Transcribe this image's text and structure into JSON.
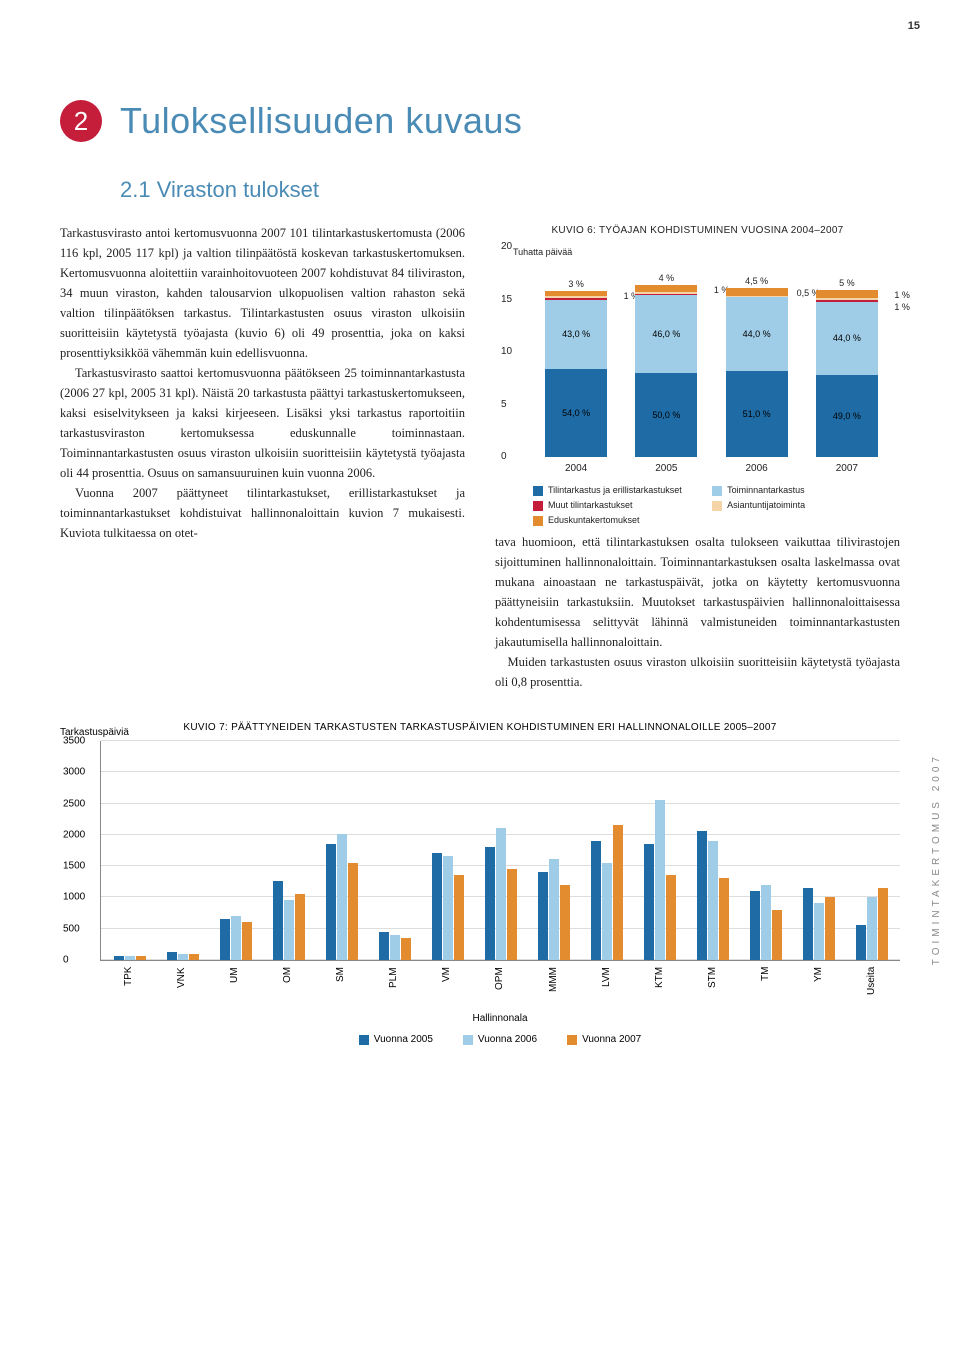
{
  "page_number": "15",
  "chapter": {
    "number": "2",
    "title": "Tuloksellisuuden kuvaus"
  },
  "section_title": "2.1 Viraston tulokset",
  "side_text": "TOIMINTAKERTOMUS 2007",
  "colors": {
    "accent_red": "#c41e3a",
    "accent_blue": "#4a8bb5",
    "bar_dark_blue": "#1f6ba5",
    "bar_light_blue": "#9fcce6",
    "bar_orange": "#e38b2f",
    "bar_pale": "#f5d5a8",
    "bar_red": "#c41e3a",
    "grid": "#dddddd"
  },
  "left_paras": [
    "Tarkastusvirasto antoi kertomusvuonna 2007 101 tilintarkastuskertomusta (2006 116 kpl, 2005 117 kpl) ja valtion tilinpäätöstä koskevan tarkastuskertomuksen. Kertomusvuonna aloitettiin varainhoitovuoteen 2007 kohdistuvat 84 tiliviraston, 34 muun viraston, kahden talousarvion ulkopuolisen valtion rahaston sekä valtion tilinpäätöksen tarkastus. Tilintarkastusten osuus viraston ulkoisiin suoritteisiin käytetystä työajasta (kuvio 6) oli 49 prosenttia, joka on kaksi prosenttiyksikköä vähemmän kuin edellisvuonna.",
    "Tarkastusvirasto saattoi kertomusvuonna päätökseen 25 toiminnantarkastusta (2006 27 kpl, 2005 31 kpl). Näistä 20 tarkastusta päättyi tarkastuskertomukseen, kaksi esiselvitykseen ja kaksi kirjeeseen. Lisäksi yksi tarkastus raportoitiin tarkastusviraston kertomuksessa eduskunnalle toiminnastaan. Toiminnantarkastusten osuus viraston ulkoisiin suoritteisiin käytetystä työajasta oli 44 prosenttia. Osuus on samansuuruinen kuin vuonna 2006.",
    "Vuonna 2007 päättyneet tilintarkastukset, erillistarkastukset ja toiminnantarkastukset kohdistuivat hallinnonaloittain kuvion 7 mukaisesti. Kuviota tulkitaessa on otet-"
  ],
  "right_para": "tava huomioon, että tilintarkastuksen osalta tulokseen vaikuttaa tilivirastojen sijoittuminen hallinnonaloittain. Toiminnantarkastuksen osalta laskelmassa ovat mukana ainoastaan ne tarkastuspäivät, jotka on käytetty kertomusvuonna päättyneisiin tarkastuksiin. Muutokset tarkastuspäivien hallinnonaloittaisessa kohdentumisessa selittyvät lähinnä valmistuneiden toiminnantarkastusten jakautumisella hallinnonaloittain.\n Muiden tarkastusten osuus viraston ulkoisiin suoritteisiin käytetystä työajasta oli 0,8 prosenttia.",
  "chart6": {
    "title": "KUVIO 6: TYÖAJAN KOHDISTUMINEN VUOSINA 2004–2007",
    "y_unit": "Tuhatta päivää",
    "ymax": 20,
    "yticks": [
      0,
      5,
      10,
      15,
      20
    ],
    "categories": [
      "2004",
      "2005",
      "2006",
      "2007"
    ],
    "segments_order": [
      "tilintarkastus",
      "toiminnantarkastus",
      "muut",
      "asiantuntija",
      "eduskunta"
    ],
    "seg_colors": {
      "tilintarkastus": "#1f6ba5",
      "toiminnantarkastus": "#9fcce6",
      "muut": "#c41e3a",
      "asiantuntija": "#f5d5a8",
      "eduskunta": "#e38b2f"
    },
    "top_labels": [
      "3 %",
      "4 %",
      "4,5 %",
      "5 %"
    ],
    "upper_small": [
      "1 %",
      "1 %",
      "0,5 %",
      "1 %"
    ],
    "extra_2007": "1 %",
    "mid_labels": [
      "43,0 %",
      "46,0 %",
      "44,0 %",
      "44,0 %"
    ],
    "bottom_labels": [
      "54,0 %",
      "50,0 %",
      "51,0 %",
      "49,0 %"
    ],
    "heights_pct_of_ymax": [
      {
        "tilintarkastus": 42,
        "toiminnantarkastus": 33,
        "muut": 0.8,
        "asiantuntija": 0.8,
        "eduskunta": 2.4
      },
      {
        "tilintarkastus": 40,
        "toiminnantarkastus": 37,
        "muut": 0.8,
        "asiantuntija": 0.8,
        "eduskunta": 3.2
      },
      {
        "tilintarkastus": 41,
        "toiminnantarkastus": 35,
        "muut": 0.4,
        "asiantuntija": 0.4,
        "eduskunta": 3.6
      },
      {
        "tilintarkastus": 39,
        "toiminnantarkastus": 35,
        "muut": 0.8,
        "asiantuntija": 0.8,
        "eduskunta": 4.0
      }
    ],
    "legend": [
      {
        "color": "#1f6ba5",
        "label": "Tilintarkastus ja erillistarkastukset"
      },
      {
        "color": "#9fcce6",
        "label": "Toiminnantarkastus"
      },
      {
        "color": "#c41e3a",
        "label": "Muut tilintarkastukset"
      },
      {
        "color": "#f5d5a8",
        "label": "Asiantuntijatoiminta"
      },
      {
        "color": "#e38b2f",
        "label": "Eduskuntakertomukset"
      }
    ]
  },
  "chart7": {
    "title": "KUVIO 7: PÄÄTTYNEIDEN TARKASTUSTEN TARKASTUSPÄIVIEN KOHDISTUMINEN ERI HALLINNONALOILLE 2005–2007",
    "y_unit": "Tarkastuspäiviä",
    "x_axis_title": "Hallinnonala",
    "ymax": 3500,
    "yticks": [
      0,
      500,
      1000,
      1500,
      2000,
      2500,
      3000,
      3500
    ],
    "categories": [
      "TPK",
      "VNK",
      "UM",
      "OM",
      "SM",
      "PLM",
      "VM",
      "OPM",
      "MMM",
      "LVM",
      "KTM",
      "STM",
      "TM",
      "YM",
      "Useita"
    ],
    "series": [
      {
        "name": "Vuonna 2005",
        "color": "#1f6ba5",
        "values": [
          60,
          120,
          650,
          1250,
          1850,
          450,
          1700,
          1800,
          1400,
          1900,
          1850,
          2050,
          1100,
          1150,
          550
        ]
      },
      {
        "name": "Vuonna 2006",
        "color": "#9fcce6",
        "values": [
          70,
          100,
          700,
          950,
          2000,
          400,
          1650,
          2100,
          1600,
          1550,
          2550,
          1900,
          1200,
          900,
          1000
        ]
      },
      {
        "name": "Vuonna 2007",
        "color": "#e38b2f",
        "values": [
          60,
          90,
          600,
          1050,
          1550,
          350,
          1350,
          1450,
          1200,
          2150,
          1350,
          1300,
          800,
          1000,
          1150
        ]
      }
    ]
  }
}
